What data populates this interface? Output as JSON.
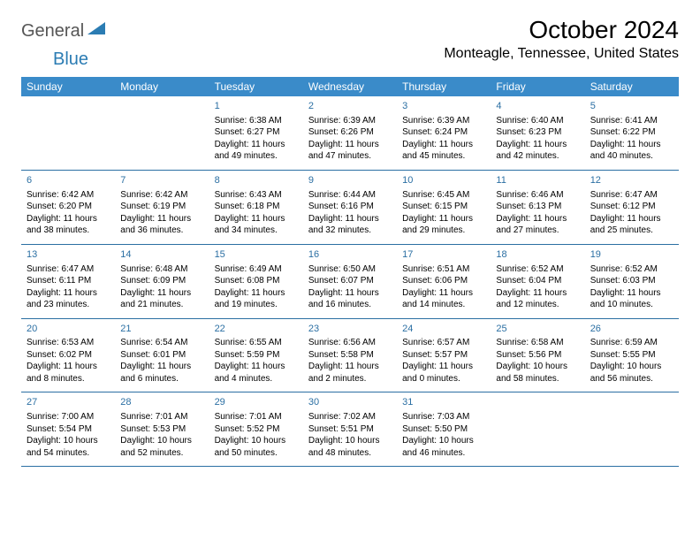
{
  "branding": {
    "logo_general": "General",
    "logo_blue": "Blue",
    "logo_color_general": "#555555",
    "logo_color_blue": "#2b7cb3"
  },
  "header": {
    "month_title": "October 2024",
    "location": "Monteagle, Tennessee, United States"
  },
  "style": {
    "header_bg": "#3a8bc9",
    "header_text": "#ffffff",
    "row_border": "#2b6fa3",
    "daynum_color": "#2b6fa3",
    "body_text": "#000000",
    "page_bg": "#ffffff",
    "title_fontsize": 28,
    "location_fontsize": 16,
    "dayheader_fontsize": 12,
    "cell_fontsize": 10
  },
  "day_headers": [
    "Sunday",
    "Monday",
    "Tuesday",
    "Wednesday",
    "Thursday",
    "Friday",
    "Saturday"
  ],
  "weeks": [
    [
      null,
      null,
      {
        "num": "1",
        "sunrise": "Sunrise: 6:38 AM",
        "sunset": "Sunset: 6:27 PM",
        "daylight": "Daylight: 11 hours and 49 minutes."
      },
      {
        "num": "2",
        "sunrise": "Sunrise: 6:39 AM",
        "sunset": "Sunset: 6:26 PM",
        "daylight": "Daylight: 11 hours and 47 minutes."
      },
      {
        "num": "3",
        "sunrise": "Sunrise: 6:39 AM",
        "sunset": "Sunset: 6:24 PM",
        "daylight": "Daylight: 11 hours and 45 minutes."
      },
      {
        "num": "4",
        "sunrise": "Sunrise: 6:40 AM",
        "sunset": "Sunset: 6:23 PM",
        "daylight": "Daylight: 11 hours and 42 minutes."
      },
      {
        "num": "5",
        "sunrise": "Sunrise: 6:41 AM",
        "sunset": "Sunset: 6:22 PM",
        "daylight": "Daylight: 11 hours and 40 minutes."
      }
    ],
    [
      {
        "num": "6",
        "sunrise": "Sunrise: 6:42 AM",
        "sunset": "Sunset: 6:20 PM",
        "daylight": "Daylight: 11 hours and 38 minutes."
      },
      {
        "num": "7",
        "sunrise": "Sunrise: 6:42 AM",
        "sunset": "Sunset: 6:19 PM",
        "daylight": "Daylight: 11 hours and 36 minutes."
      },
      {
        "num": "8",
        "sunrise": "Sunrise: 6:43 AM",
        "sunset": "Sunset: 6:18 PM",
        "daylight": "Daylight: 11 hours and 34 minutes."
      },
      {
        "num": "9",
        "sunrise": "Sunrise: 6:44 AM",
        "sunset": "Sunset: 6:16 PM",
        "daylight": "Daylight: 11 hours and 32 minutes."
      },
      {
        "num": "10",
        "sunrise": "Sunrise: 6:45 AM",
        "sunset": "Sunset: 6:15 PM",
        "daylight": "Daylight: 11 hours and 29 minutes."
      },
      {
        "num": "11",
        "sunrise": "Sunrise: 6:46 AM",
        "sunset": "Sunset: 6:13 PM",
        "daylight": "Daylight: 11 hours and 27 minutes."
      },
      {
        "num": "12",
        "sunrise": "Sunrise: 6:47 AM",
        "sunset": "Sunset: 6:12 PM",
        "daylight": "Daylight: 11 hours and 25 minutes."
      }
    ],
    [
      {
        "num": "13",
        "sunrise": "Sunrise: 6:47 AM",
        "sunset": "Sunset: 6:11 PM",
        "daylight": "Daylight: 11 hours and 23 minutes."
      },
      {
        "num": "14",
        "sunrise": "Sunrise: 6:48 AM",
        "sunset": "Sunset: 6:09 PM",
        "daylight": "Daylight: 11 hours and 21 minutes."
      },
      {
        "num": "15",
        "sunrise": "Sunrise: 6:49 AM",
        "sunset": "Sunset: 6:08 PM",
        "daylight": "Daylight: 11 hours and 19 minutes."
      },
      {
        "num": "16",
        "sunrise": "Sunrise: 6:50 AM",
        "sunset": "Sunset: 6:07 PM",
        "daylight": "Daylight: 11 hours and 16 minutes."
      },
      {
        "num": "17",
        "sunrise": "Sunrise: 6:51 AM",
        "sunset": "Sunset: 6:06 PM",
        "daylight": "Daylight: 11 hours and 14 minutes."
      },
      {
        "num": "18",
        "sunrise": "Sunrise: 6:52 AM",
        "sunset": "Sunset: 6:04 PM",
        "daylight": "Daylight: 11 hours and 12 minutes."
      },
      {
        "num": "19",
        "sunrise": "Sunrise: 6:52 AM",
        "sunset": "Sunset: 6:03 PM",
        "daylight": "Daylight: 11 hours and 10 minutes."
      }
    ],
    [
      {
        "num": "20",
        "sunrise": "Sunrise: 6:53 AM",
        "sunset": "Sunset: 6:02 PM",
        "daylight": "Daylight: 11 hours and 8 minutes."
      },
      {
        "num": "21",
        "sunrise": "Sunrise: 6:54 AM",
        "sunset": "Sunset: 6:01 PM",
        "daylight": "Daylight: 11 hours and 6 minutes."
      },
      {
        "num": "22",
        "sunrise": "Sunrise: 6:55 AM",
        "sunset": "Sunset: 5:59 PM",
        "daylight": "Daylight: 11 hours and 4 minutes."
      },
      {
        "num": "23",
        "sunrise": "Sunrise: 6:56 AM",
        "sunset": "Sunset: 5:58 PM",
        "daylight": "Daylight: 11 hours and 2 minutes."
      },
      {
        "num": "24",
        "sunrise": "Sunrise: 6:57 AM",
        "sunset": "Sunset: 5:57 PM",
        "daylight": "Daylight: 11 hours and 0 minutes."
      },
      {
        "num": "25",
        "sunrise": "Sunrise: 6:58 AM",
        "sunset": "Sunset: 5:56 PM",
        "daylight": "Daylight: 10 hours and 58 minutes."
      },
      {
        "num": "26",
        "sunrise": "Sunrise: 6:59 AM",
        "sunset": "Sunset: 5:55 PM",
        "daylight": "Daylight: 10 hours and 56 minutes."
      }
    ],
    [
      {
        "num": "27",
        "sunrise": "Sunrise: 7:00 AM",
        "sunset": "Sunset: 5:54 PM",
        "daylight": "Daylight: 10 hours and 54 minutes."
      },
      {
        "num": "28",
        "sunrise": "Sunrise: 7:01 AM",
        "sunset": "Sunset: 5:53 PM",
        "daylight": "Daylight: 10 hours and 52 minutes."
      },
      {
        "num": "29",
        "sunrise": "Sunrise: 7:01 AM",
        "sunset": "Sunset: 5:52 PM",
        "daylight": "Daylight: 10 hours and 50 minutes."
      },
      {
        "num": "30",
        "sunrise": "Sunrise: 7:02 AM",
        "sunset": "Sunset: 5:51 PM",
        "daylight": "Daylight: 10 hours and 48 minutes."
      },
      {
        "num": "31",
        "sunrise": "Sunrise: 7:03 AM",
        "sunset": "Sunset: 5:50 PM",
        "daylight": "Daylight: 10 hours and 46 minutes."
      },
      null,
      null
    ]
  ]
}
